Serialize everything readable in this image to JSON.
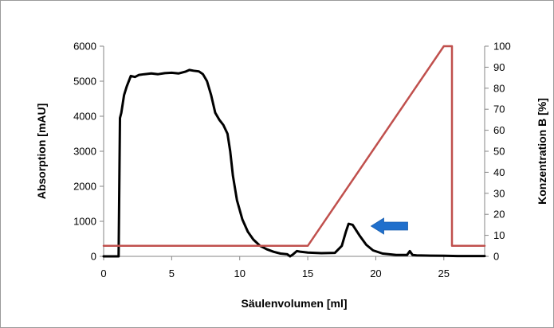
{
  "chart_data": {
    "type": "line",
    "title": "",
    "xlabel": "Säulenvolumen [ml]",
    "ylabel": "Absorption [mAU]",
    "y2label": "Konzentration B [%]",
    "xlim": [
      0,
      28
    ],
    "ylim": [
      0,
      6000
    ],
    "y2lim": [
      0,
      100
    ],
    "x_ticks": [
      0,
      5,
      10,
      15,
      20,
      25
    ],
    "y_ticks": [
      0,
      1000,
      2000,
      3000,
      4000,
      5000,
      6000
    ],
    "y2_ticks": [
      0,
      10,
      20,
      30,
      40,
      50,
      60,
      70,
      80,
      90,
      100
    ],
    "grid": false,
    "series": [
      {
        "axis": "left",
        "color": "#000000",
        "x": [
          0,
          1.1,
          1.2,
          1.3,
          1.4,
          1.5,
          1.7,
          2.0,
          2.3,
          2.6,
          3.0,
          3.5,
          4.0,
          4.5,
          5.0,
          5.5,
          6.0,
          6.3,
          6.6,
          7.0,
          7.3,
          7.6,
          7.9,
          8.2,
          8.5,
          8.8,
          9.1,
          9.3,
          9.5,
          9.8,
          10.2,
          10.6,
          11.0,
          11.5,
          12.0,
          12.5,
          13.0,
          13.5,
          13.7,
          13.9,
          14.2,
          14.5,
          15.0,
          16.0,
          17.0,
          17.5,
          17.8,
          18.0,
          18.3,
          18.8,
          19.3,
          19.8,
          20.5,
          21.5,
          22.3,
          22.5,
          22.7,
          23.0,
          24.0,
          25.0,
          26.0,
          27.0,
          28.0
        ],
        "y": [
          0,
          0,
          3950,
          4100,
          4350,
          4600,
          4850,
          5150,
          5120,
          5180,
          5200,
          5220,
          5200,
          5230,
          5240,
          5220,
          5270,
          5320,
          5300,
          5280,
          5200,
          5000,
          4600,
          4100,
          3900,
          3750,
          3500,
          3000,
          2300,
          1600,
          1050,
          700,
          480,
          300,
          200,
          130,
          80,
          60,
          0,
          50,
          150,
          130,
          110,
          90,
          100,
          300,
          700,
          930,
          900,
          600,
          330,
          170,
          80,
          40,
          40,
          150,
          40,
          30,
          20,
          15,
          10,
          10,
          10
        ]
      },
      {
        "axis": "right",
        "color": "#c0504d",
        "x": [
          0,
          15.0,
          25.0,
          25.6,
          25.6,
          28.0
        ],
        "y": [
          5,
          5,
          100,
          100,
          5,
          5
        ]
      }
    ],
    "annotations": [
      {
        "type": "arrow",
        "direction": "left",
        "color": "#1f6fcc",
        "x": 21.0,
        "y": 1000
      }
    ]
  }
}
